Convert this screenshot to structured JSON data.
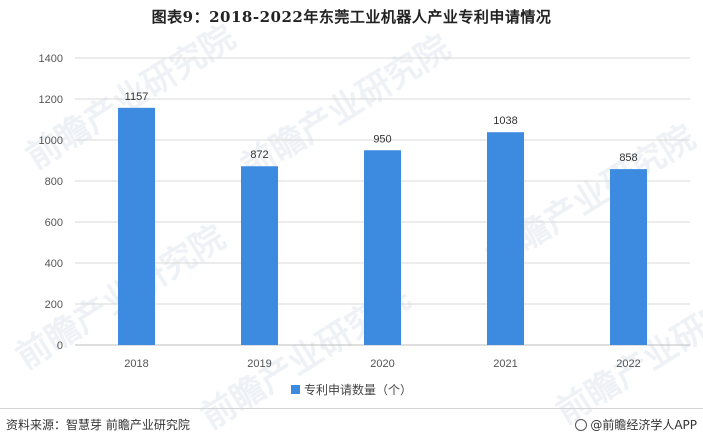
{
  "title": "图表9：2018-2022年东莞工业机器人产业专利申请情况",
  "watermark_text": "前瞻产业研究院",
  "source": "资料来源：智慧芽 前瞻产业研究院",
  "brand": "@前瞻经济学人APP",
  "brand_icon": "brand-circle-icon",
  "colors": {
    "bar": "#3d8be0",
    "grid": "#d9d9d9",
    "axis": "#bfbfbf"
  },
  "chart_data": {
    "type": "bar",
    "categories": [
      "2018",
      "2019",
      "2020",
      "2021",
      "2022"
    ],
    "series": [
      {
        "name": "专利申请数量（个）",
        "values": [
          1157,
          872,
          950,
          1038,
          858
        ]
      }
    ],
    "ylim": [
      0,
      1400
    ],
    "yticks": [
      "0",
      "200",
      "400",
      "600",
      "800",
      "1000",
      "1200",
      "1400"
    ],
    "data_labels": [
      "1157",
      "872",
      "950",
      "1038",
      "858"
    ],
    "grid": true,
    "legend_position": "bottom-center"
  }
}
